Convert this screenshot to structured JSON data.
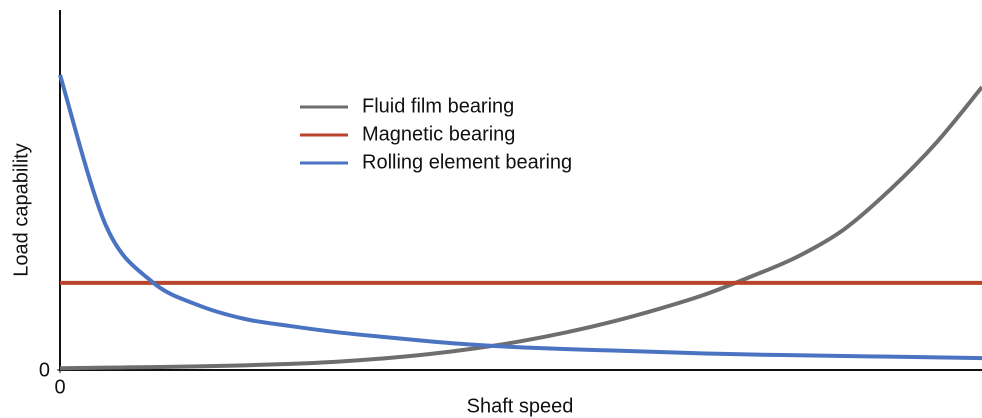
{
  "chart_data": {
    "type": "line",
    "x_label": "Shaft speed",
    "y_label": "Load capability",
    "x": [
      0,
      5,
      10,
      15,
      20,
      25,
      30,
      35,
      40,
      45,
      50,
      55,
      60,
      65,
      70,
      75,
      80,
      85,
      90,
      95,
      100
    ],
    "series": [
      {
        "name": "Fluid film bearing",
        "color": "#6e6e6e",
        "values": [
          0.5,
          0.65,
          0.8,
          1.0,
          1.3,
          1.7,
          2.3,
          3.2,
          4.4,
          6,
          8,
          10.5,
          13.5,
          17,
          21,
          26,
          31.5,
          39,
          50,
          63,
          78.6
        ]
      },
      {
        "name": "Magnetic bearing",
        "color": "#b8442b",
        "values": [
          24.2,
          24.2,
          24.2,
          24.2,
          24.2,
          24.2,
          24.2,
          24.2,
          24.2,
          24.2,
          24.2,
          24.2,
          24.2,
          24.2,
          24.2,
          24.2,
          24.2,
          24.2,
          24.2,
          24.2,
          24.2
        ]
      },
      {
        "name": "Rolling element bearing",
        "color": "#4a74c2",
        "values": [
          82,
          40,
          24.5,
          18,
          14.2,
          12.2,
          10.5,
          9.2,
          8,
          7,
          6.3,
          5.8,
          5.4,
          5,
          4.6,
          4.3,
          4.1,
          3.9,
          3.7,
          3.5,
          3.3
        ]
      }
    ],
    "xlim": [
      0,
      100
    ],
    "ylim": [
      0,
      100
    ],
    "xticks": [
      0
    ],
    "yticks": [
      0
    ]
  }
}
